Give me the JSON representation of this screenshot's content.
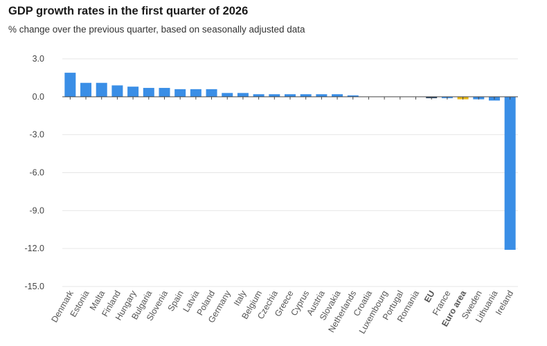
{
  "title": "GDP growth rates in the first quarter of 2026",
  "subtitle": "% change over the previous quarter, based on seasonally adjusted data",
  "chart_data": {
    "type": "bar",
    "title": "GDP growth rates in the first quarter of 2026",
    "subtitle": "% change over the previous quarter, based on seasonally adjusted data",
    "xlabel": "",
    "ylabel": "",
    "ylim": [
      -15,
      3
    ],
    "yticks": [
      "3.0",
      "0.0",
      "-3.0",
      "-6.0",
      "-9.0",
      "-12.0",
      "-15.0"
    ],
    "grid": true,
    "categories": [
      "Denmark",
      "Estonia",
      "Malta",
      "Finland",
      "Hungary",
      "Bulgaria",
      "Slovenia",
      "Spain",
      "Latvia",
      "Poland",
      "Germany",
      "Italy",
      "Belgium",
      "Czechia",
      "Greece",
      "Cyprus",
      "Austria",
      "Slovakia",
      "Netherlands",
      "Croatia",
      "Luxembourg",
      "Portugal",
      "Romania",
      "EU",
      "France",
      "Euro area",
      "Sweden",
      "Lithuania",
      "Ireland"
    ],
    "values": [
      1.9,
      1.1,
      1.1,
      0.9,
      0.8,
      0.7,
      0.7,
      0.6,
      0.6,
      0.6,
      0.3,
      0.3,
      0.2,
      0.2,
      0.2,
      0.2,
      0.2,
      0.2,
      0.1,
      0.0,
      0.0,
      0.0,
      0.0,
      -0.1,
      -0.1,
      -0.2,
      -0.2,
      -0.3,
      -12.1
    ],
    "bold_categories": [
      "EU",
      "Euro area"
    ],
    "colors": {
      "default": "#3a8ee6",
      "EU": "#1f3c5c",
      "Euro area": "#e5b617",
      "grid": "#e6e6e6",
      "axis": "#444444"
    }
  }
}
